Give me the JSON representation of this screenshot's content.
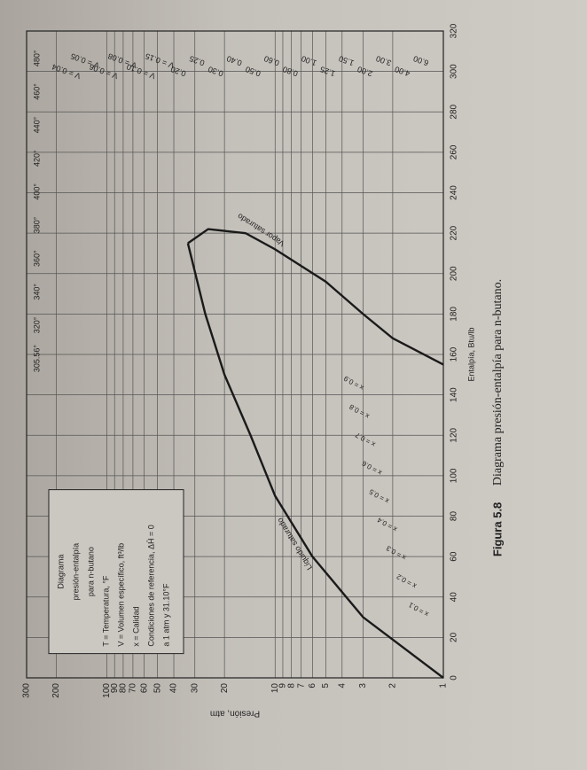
{
  "chart_data": {
    "type": "line",
    "xlabel": "Entalpía, Btu/lb",
    "ylabel": "Presión, atm",
    "caption_label": "Figura 5.8",
    "caption_text": "Diagrama presión-entalpía para n-butano.",
    "legend_box": [
      "Diagrama",
      "presión-entalpía",
      "para n-butano",
      "T = Temperatura, °F",
      "V = Volumen específico, ft³/lb",
      "x = Calidad",
      "Condiciones de referencia, ΔĤ = 0",
      "a 1 atm y 31.10°F"
    ],
    "xlim": [
      0,
      320
    ],
    "xticks": [
      0,
      20,
      40,
      60,
      80,
      100,
      120,
      140,
      160,
      180,
      200,
      220,
      240,
      260,
      280,
      300,
      320
    ],
    "ylim": [
      1,
      300
    ],
    "yscale": "log",
    "yticks": [
      1,
      2,
      3,
      4,
      5,
      6,
      7,
      8,
      9,
      10,
      20,
      30,
      40,
      50,
      60,
      70,
      80,
      90,
      100,
      200,
      300
    ],
    "grid": true,
    "series": [
      {
        "name": "Líquido saturado",
        "color": "#1a1a1a",
        "x": [
          0,
          30,
          60,
          90,
          120,
          150,
          180,
          215
        ],
        "values": [
          1,
          3,
          6,
          10,
          14,
          20,
          26,
          33
        ]
      },
      {
        "name": "Vapor saturado",
        "color": "#1a1a1a",
        "x": [
          215,
          222,
          220,
          212,
          196,
          180,
          168,
          155
        ],
        "values": [
          33,
          25,
          15,
          10,
          5,
          3,
          2,
          1
        ]
      }
    ],
    "isotherm_labels": [
      "305.56°",
      "320°",
      "340°",
      "360°",
      "380°",
      "400°",
      "420°",
      "440°",
      "460°",
      "480°"
    ],
    "volume_labels": [
      "V = 0.04",
      "V = 0.05",
      "V = 0.06",
      "V = 0.08",
      "V = 0.10",
      "V = 0.15",
      "0.20",
      "0.25",
      "0.30",
      "0.40",
      "0.50",
      "0.60",
      "0.80",
      "1.00",
      "1.25",
      "1.50",
      "2.00",
      "3.00",
      "4.00",
      "6.00"
    ],
    "quality_labels": [
      "x = 0.1",
      "x = 0.2",
      "x = 0.3",
      "x = 0.4",
      "x = 0.5",
      "x = 0.6",
      "x = 0.7",
      "x = 0.8",
      "x = 0.9"
    ]
  }
}
